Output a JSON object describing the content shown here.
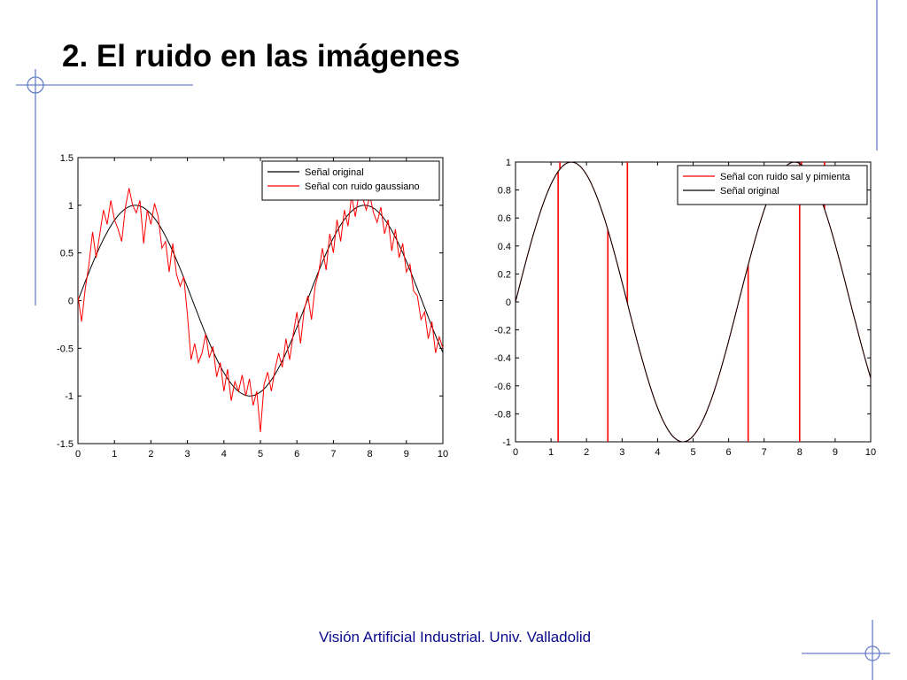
{
  "slide": {
    "title": "2. El ruido en las imágenes",
    "footer": "Visión Artificial Industrial. Univ. Valladolid",
    "accent_color": "#6a7fc8"
  },
  "chart_data": [
    {
      "type": "line",
      "title": "",
      "xlabel": "",
      "ylabel": "",
      "xlim": [
        0,
        10
      ],
      "ylim": [
        -1.5,
        1.5
      ],
      "xticks": [
        "0",
        "1",
        "2",
        "3",
        "4",
        "5",
        "6",
        "7",
        "8",
        "9",
        "10"
      ],
      "yticks": [
        "1.5",
        "1",
        "0.5",
        "0",
        "-0.5",
        "-1",
        "-1.5"
      ],
      "legend_position": "top-right",
      "grid": false,
      "series": [
        {
          "name": "Señal original",
          "color": "#000000",
          "function": "sin(x)",
          "x": [
            0,
            0.5,
            1,
            1.5,
            2,
            2.5,
            3,
            3.5,
            4,
            4.5,
            5,
            5.5,
            6,
            6.5,
            7,
            7.5,
            8,
            8.5,
            9,
            9.5,
            10
          ],
          "y": [
            0,
            0.48,
            0.84,
            1.0,
            0.91,
            0.6,
            0.14,
            -0.35,
            -0.76,
            -0.98,
            -0.96,
            -0.71,
            -0.28,
            0.22,
            0.66,
            0.94,
            0.99,
            0.8,
            0.41,
            -0.08,
            -0.54
          ]
        },
        {
          "name": "Señal con ruido gaussiano",
          "color": "#ff0000",
          "x": [
            0,
            0.1,
            0.2,
            0.3,
            0.4,
            0.5,
            0.6,
            0.7,
            0.8,
            0.9,
            1.0,
            1.1,
            1.2,
            1.3,
            1.4,
            1.5,
            1.6,
            1.7,
            1.8,
            1.9,
            2.0,
            2.1,
            2.2,
            2.3,
            2.4,
            2.5,
            2.6,
            2.7,
            2.8,
            2.9,
            3.0,
            3.1,
            3.2,
            3.3,
            3.4,
            3.5,
            3.6,
            3.7,
            3.8,
            3.9,
            4.0,
            4.1,
            4.2,
            4.3,
            4.4,
            4.5,
            4.6,
            4.7,
            4.8,
            4.9,
            5.0,
            5.1,
            5.2,
            5.3,
            5.4,
            5.5,
            5.6,
            5.7,
            5.8,
            5.9,
            6.0,
            6.1,
            6.2,
            6.3,
            6.4,
            6.5,
            6.6,
            6.7,
            6.8,
            6.9,
            7.0,
            7.1,
            7.2,
            7.3,
            7.4,
            7.5,
            7.6,
            7.7,
            7.8,
            7.9,
            8.0,
            8.1,
            8.2,
            8.3,
            8.4,
            8.5,
            8.6,
            8.7,
            8.8,
            8.9,
            9.0,
            9.1,
            9.2,
            9.3,
            9.4,
            9.5,
            9.6,
            9.7,
            9.8,
            9.9,
            10.0
          ],
          "y": [
            0.05,
            -0.22,
            0.12,
            0.38,
            0.72,
            0.45,
            0.7,
            0.95,
            0.8,
            1.05,
            0.85,
            0.75,
            0.62,
            0.98,
            1.18,
            1.0,
            0.92,
            1.05,
            0.6,
            0.95,
            0.8,
            1.02,
            0.88,
            0.55,
            0.62,
            0.3,
            0.6,
            0.28,
            0.15,
            0.25,
            -0.15,
            -0.62,
            -0.45,
            -0.65,
            -0.55,
            -0.35,
            -0.6,
            -0.48,
            -0.8,
            -0.65,
            -0.95,
            -0.72,
            -1.05,
            -0.85,
            -0.95,
            -0.78,
            -1.0,
            -0.82,
            -1.1,
            -0.95,
            -1.38,
            -0.88,
            -0.75,
            -0.95,
            -0.72,
            -0.55,
            -0.7,
            -0.4,
            -0.62,
            -0.35,
            -0.12,
            -0.45,
            -0.1,
            0.05,
            -0.2,
            0.15,
            0.3,
            0.55,
            0.32,
            0.7,
            0.5,
            0.85,
            0.62,
            0.95,
            0.78,
            1.1,
            0.88,
            1.12,
            1.08,
            0.95,
            1.1,
            0.92,
            0.82,
            0.98,
            0.7,
            0.85,
            0.52,
            0.75,
            0.45,
            0.6,
            0.3,
            0.38,
            0.1,
            0.05,
            -0.2,
            -0.12,
            -0.4,
            -0.22,
            -0.55,
            -0.38,
            -0.5
          ]
        }
      ]
    },
    {
      "type": "line",
      "title": "",
      "xlabel": "",
      "ylabel": "",
      "xlim": [
        0,
        10
      ],
      "ylim": [
        -1,
        1
      ],
      "xticks": [
        "0",
        "1",
        "2",
        "3",
        "4",
        "5",
        "6",
        "7",
        "8",
        "9",
        "10"
      ],
      "yticks": [
        "1",
        "0.8",
        "0.6",
        "0.4",
        "0.2",
        "0",
        "-0.2",
        "-0.4",
        "-0.6",
        "-0.8",
        "-1"
      ],
      "legend_position": "top-right",
      "grid": false,
      "series": [
        {
          "name": "Señal con ruido sal y pimienta",
          "color": "#ff0000",
          "function": "sin(x)",
          "impulses": [
            {
              "x": 1.2,
              "y": -1
            },
            {
              "x": 1.25,
              "y": 1
            },
            {
              "x": 2.6,
              "y": -1
            },
            {
              "x": 3.15,
              "y": 1
            },
            {
              "x": 6.55,
              "y": -1
            },
            {
              "x": 8.0,
              "y": -1
            },
            {
              "x": 8.05,
              "y": 1
            },
            {
              "x": 8.7,
              "y": 1
            }
          ]
        },
        {
          "name": "Señal original",
          "color": "#000000",
          "function": "sin(x)",
          "x": [
            0,
            0.5,
            1,
            1.5,
            2,
            2.5,
            3,
            3.5,
            4,
            4.5,
            5,
            5.5,
            6,
            6.5,
            7,
            7.5,
            8,
            8.5,
            9,
            9.5,
            10
          ],
          "y": [
            0,
            0.48,
            0.84,
            1.0,
            0.91,
            0.6,
            0.14,
            -0.35,
            -0.76,
            -0.98,
            -0.96,
            -0.71,
            -0.28,
            0.22,
            0.66,
            0.94,
            0.99,
            0.8,
            0.41,
            -0.08,
            -0.54
          ]
        }
      ]
    }
  ]
}
